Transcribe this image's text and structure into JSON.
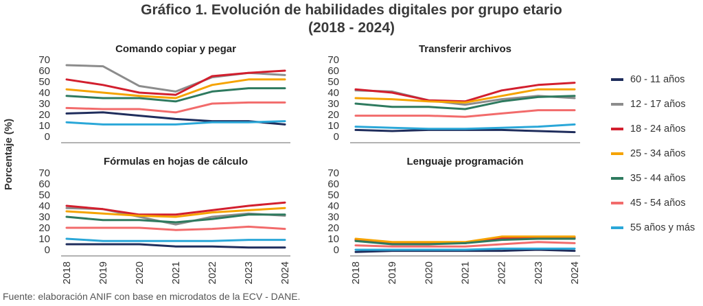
{
  "title": "Gráfico 1. Evolución de habilidades digitales por grupo etario",
  "subtitle": "(2018 - 2024)",
  "source": "Fuente: elaboración ANIF con base en microdatos de la ECV - DANE.",
  "chart_data": {
    "type": "line",
    "ylabel": "Porcentaje (%)",
    "ylim": [
      0,
      70
    ],
    "yticks": [
      0,
      10,
      20,
      30,
      40,
      50,
      60,
      70
    ],
    "categories": [
      "2018",
      "2019",
      "2020",
      "2021",
      "2022",
      "2023",
      "2024"
    ],
    "legend_position": "right",
    "series_meta": [
      {
        "name": "60 - 11 años",
        "color": "#1f2d5c"
      },
      {
        "name": "12 - 17 años",
        "color": "#8c8c8c"
      },
      {
        "name": "18 - 24 años",
        "color": "#d21f2e"
      },
      {
        "name": "25 - 34 años",
        "color": "#f5a300"
      },
      {
        "name": "35 - 44 años",
        "color": "#2e7a5f"
      },
      {
        "name": "45 - 54 años",
        "color": "#f26b6b"
      },
      {
        "name": "55 años y más",
        "color": "#2aa7d8"
      }
    ],
    "panels": [
      {
        "title": "Comando copiar y pegar",
        "series": [
          {
            "name": "60 - 11 años",
            "values": [
              21,
              22,
              19,
              16,
              14,
              14,
              11
            ]
          },
          {
            "name": "12 - 17 años",
            "values": [
              65,
              64,
              46,
              41,
              54,
              58,
              56
            ]
          },
          {
            "name": "18 - 24 años",
            "values": [
              52,
              47,
              40,
              38,
              55,
              58,
              60
            ]
          },
          {
            "name": "25 - 34 años",
            "values": [
              43,
              40,
              37,
              35,
              47,
              52,
              52
            ]
          },
          {
            "name": "35 - 44 años",
            "values": [
              37,
              35,
              35,
              32,
              41,
              44,
              44
            ]
          },
          {
            "name": "45 - 54 años",
            "values": [
              26,
              25,
              25,
              22,
              30,
              31,
              31
            ]
          },
          {
            "name": "55 años y más",
            "values": [
              13,
              11,
              11,
              11,
              13,
              13,
              14
            ]
          }
        ]
      },
      {
        "title": "Transferir archivos",
        "series": [
          {
            "name": "60 - 11 años",
            "values": [
              6,
              5,
              6,
              6,
              6,
              5,
              4
            ]
          },
          {
            "name": "12 - 17 años",
            "values": [
              42,
              41,
              33,
              29,
              34,
              37,
              35
            ]
          },
          {
            "name": "18 - 24 años",
            "values": [
              43,
              40,
              33,
              32,
              42,
              47,
              49
            ]
          },
          {
            "name": "25 - 34 años",
            "values": [
              35,
              34,
              32,
              31,
              37,
              43,
              43
            ]
          },
          {
            "name": "35 - 44 años",
            "values": [
              30,
              27,
              27,
              25,
              32,
              36,
              37
            ]
          },
          {
            "name": "45 - 54 años",
            "values": [
              19,
              19,
              19,
              18,
              21,
              24,
              24
            ]
          },
          {
            "name": "55 años y más",
            "values": [
              9,
              8,
              7,
              7,
              8,
              9,
              11
            ]
          }
        ]
      },
      {
        "title": "Fórmulas en hojas de cálculo",
        "series": [
          {
            "name": "60 - 11 años",
            "values": [
              5,
              5,
              5,
              3,
              3,
              2,
              2
            ]
          },
          {
            "name": "12 - 17 años",
            "values": [
              38,
              37,
              30,
              23,
              30,
              33,
              31
            ]
          },
          {
            "name": "18 - 24 años",
            "values": [
              40,
              37,
              32,
              32,
              36,
              40,
              43
            ]
          },
          {
            "name": "25 - 34 años",
            "values": [
              35,
              33,
              31,
              30,
              34,
              36,
              38
            ]
          },
          {
            "name": "35 - 44 años",
            "values": [
              30,
              27,
              27,
              25,
              28,
              32,
              32
            ]
          },
          {
            "name": "45 - 54 años",
            "values": [
              20,
              20,
              20,
              18,
              19,
              21,
              19
            ]
          },
          {
            "name": "55 años y más",
            "values": [
              10,
              8,
              8,
              8,
              8,
              9,
              9
            ]
          }
        ]
      },
      {
        "title": "Lenguaje programación",
        "series": [
          {
            "name": "60 - 11 años",
            "values": [
              -2,
              -1,
              -1,
              -1,
              -1,
              0,
              -1
            ]
          },
          {
            "name": "12 - 17 años",
            "values": [
              8,
              6,
              6,
              6,
              10,
              10,
              10
            ]
          },
          {
            "name": "18 - 24 años",
            "values": [
              9,
              6,
              6,
              6,
              11,
              11,
              11
            ]
          },
          {
            "name": "25 - 34 años",
            "values": [
              10,
              7,
              7,
              7,
              12,
              12,
              12
            ]
          },
          {
            "name": "35 - 44 años",
            "values": [
              8,
              5,
              5,
              6,
              9,
              10,
              10
            ]
          },
          {
            "name": "45 - 54 años",
            "values": [
              4,
              3,
              3,
              3,
              5,
              7,
              6
            ]
          },
          {
            "name": "55 años y más",
            "values": [
              0,
              0,
              0,
              0,
              1,
              1,
              1
            ]
          }
        ]
      }
    ]
  }
}
